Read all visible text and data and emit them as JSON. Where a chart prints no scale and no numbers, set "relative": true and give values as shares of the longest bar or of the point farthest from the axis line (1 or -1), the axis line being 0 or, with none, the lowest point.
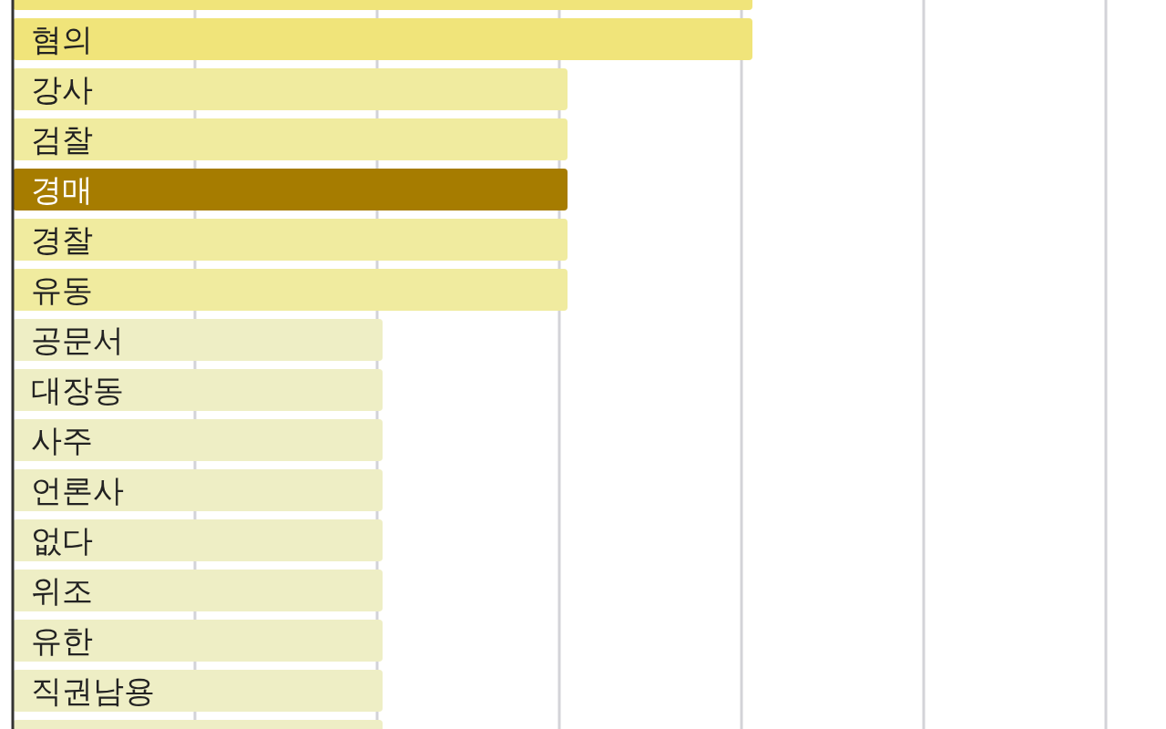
{
  "chart_data": {
    "type": "bar",
    "orientation": "horizontal",
    "relative": true,
    "grid": "x",
    "categories": [
      null,
      "혐의",
      "강사",
      "검찰",
      "경매",
      "경찰",
      "유동",
      "공문서",
      "대장동",
      "사주",
      "언론사",
      "없다",
      "위조",
      "유한",
      "직권남용",
      null
    ],
    "values": [
      1,
      1,
      0.75,
      0.75,
      0.75,
      0.75,
      0.75,
      0.5,
      0.5,
      0.5,
      0.5,
      0.5,
      0.5,
      0.5,
      0.5,
      0.5
    ],
    "colors": [
      "#f0e47a",
      "#f0e47a",
      "#f0eb9f",
      "#f0eb9f",
      "#a67c00",
      "#f0eb9f",
      "#f0eb9f",
      "#eeeec5",
      "#eeeec5",
      "#eeeec5",
      "#eeeec5",
      "#eeeec5",
      "#eeeec5",
      "#eeeec5",
      "#eeeec5",
      "#eeeec5"
    ]
  }
}
